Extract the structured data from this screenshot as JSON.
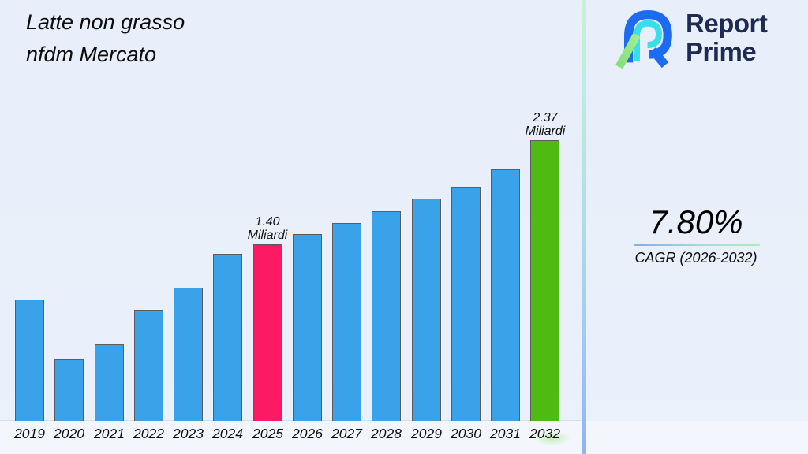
{
  "header": {
    "title_line1": "Latte non grasso",
    "title_line2": "nfdm Mercato"
  },
  "brand": {
    "line1": "Report",
    "line2": "Prime",
    "navy": "#1e2a52",
    "icon": "report-prime-logo-icon",
    "icon_colors": {
      "blue": "#1c6bf1",
      "cyan": "#38dfe9",
      "green_light": "#8fe87d",
      "teal": "#2fc69b"
    }
  },
  "chart_data": {
    "type": "bar",
    "title": "Latte non grasso nfdm Mercato",
    "categories": [
      "2019",
      "2020",
      "2021",
      "2022",
      "2023",
      "2024",
      "2025",
      "2026",
      "2027",
      "2028",
      "2029",
      "2030",
      "2031",
      "2032"
    ],
    "values": [
      0.89,
      0.33,
      0.47,
      0.79,
      1.0,
      1.31,
      1.4,
      1.5,
      1.6,
      1.71,
      1.83,
      1.94,
      2.1,
      2.37
    ],
    "unit": "Miliardi",
    "labeled_points": [
      {
        "category": "2025",
        "value_label": "1.40",
        "unit_label": "Miliardi"
      },
      {
        "category": "2032",
        "value_label": "2.37",
        "unit_label": "Miliardi"
      }
    ],
    "colors": {
      "bar_default": "#39a2e9",
      "bar_2025": "#fb1a63",
      "bar_2032": "#4fba11",
      "bar_border": "#5c5c5c"
    },
    "ylim": [
      0,
      2.6
    ],
    "grid": false,
    "legend": false,
    "x_tick_style": "italic"
  },
  "side_panel": {
    "cagr_value": "7.80%",
    "cagr_label": "CAGR (2026-2032)",
    "underline_gradient": [
      "#86a9ec",
      "#abecbe"
    ]
  }
}
